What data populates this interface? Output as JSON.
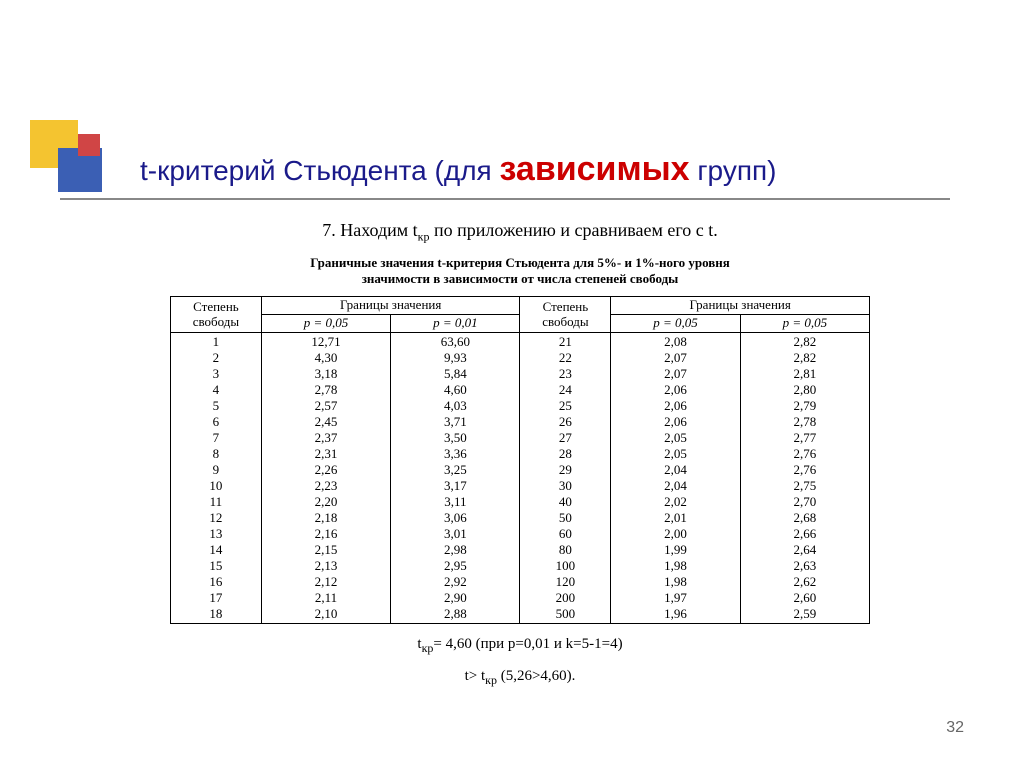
{
  "title_prefix": "t-критерий Стьюдента (для ",
  "title_red": "зависимых",
  "title_suffix": " групп)",
  "step_title_a": "7. Находим t",
  "step_title_sub": "кр",
  "step_title_b": " по приложению и сравниваем его с t.",
  "caption_line1": "Граничные значения t-критерия Стьюдента для 5%- и 1%-ного уровня",
  "caption_line2": "значимости в зависимости от числа степеней свободы",
  "header_df": "Степень свободы",
  "header_bounds": "Границы значения",
  "header_p05": "p = 0,05",
  "header_p01": "p = 0,01",
  "header_p05b": "p = 0,05",
  "left_block": {
    "df": [
      "1",
      "2",
      "3",
      "4",
      "5",
      "6",
      "7",
      "8",
      "9",
      "10",
      "11",
      "12",
      "13",
      "14",
      "15",
      "16",
      "17",
      "18"
    ],
    "p05": [
      "12,71",
      "4,30",
      "3,18",
      "2,78",
      "2,57",
      "2,45",
      "2,37",
      "2,31",
      "2,26",
      "2,23",
      "2,20",
      "2,18",
      "2,16",
      "2,15",
      "2,13",
      "2,12",
      "2,11",
      "2,10"
    ],
    "p01": [
      "63,60",
      "9,93",
      "5,84",
      "4,60",
      "4,03",
      "3,71",
      "3,50",
      "3,36",
      "3,25",
      "3,17",
      "3,11",
      "3,06",
      "3,01",
      "2,98",
      "2,95",
      "2,92",
      "2,90",
      "2,88"
    ]
  },
  "right_block": {
    "df": [
      "21",
      "22",
      "23",
      "24",
      "25",
      "26",
      "27",
      "28",
      "29",
      "30",
      "40",
      "50",
      "60",
      "80",
      "100",
      "120",
      "200",
      "500"
    ],
    "p05": [
      "2,08",
      "2,07",
      "2,07",
      "2,06",
      "2,06",
      "2,06",
      "2,05",
      "2,05",
      "2,04",
      "2,04",
      "2,02",
      "2,01",
      "2,00",
      "1,99",
      "1,98",
      "1,98",
      "1,97",
      "1,96"
    ],
    "p01": [
      "2,82",
      "2,82",
      "2,81",
      "2,80",
      "2,79",
      "2,78",
      "2,77",
      "2,76",
      "2,76",
      "2,75",
      "2,70",
      "2,68",
      "2,66",
      "2,64",
      "2,63",
      "2,62",
      "2,60",
      "2,59"
    ]
  },
  "result1_a": "t",
  "result1_sub": "кр",
  "result1_b": "= 4,60  (при p=0,01 и k=5-1=4)",
  "result2_a": "t> t",
  "result2_sub": "кр",
  "result2_b": " (5,26>4,60).",
  "page_number": "32",
  "colors": {
    "title": "#1a1a8a",
    "red": "#cc0000",
    "block_yellow": "#f4c430",
    "block_blue": "#3b5fb4",
    "block_red": "#d04545"
  }
}
